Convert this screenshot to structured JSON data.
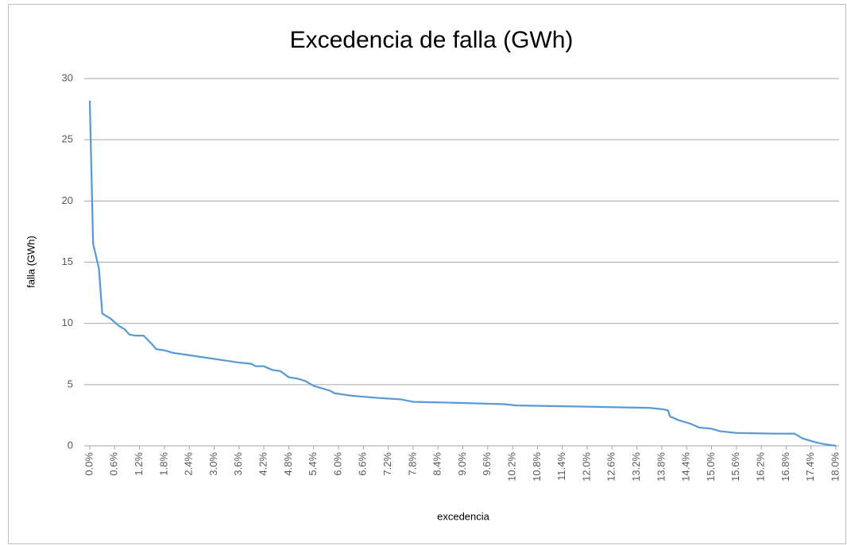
{
  "chart_data": {
    "type": "line",
    "title": "Excedencia de falla (GWh)",
    "x_label": "excedencia",
    "y_label": "falla (GWh)",
    "grid": true,
    "xlim": [
      0,
      18
    ],
    "ylim": [
      0,
      30
    ],
    "yticks": [
      0,
      5,
      10,
      15,
      20,
      25,
      30
    ],
    "xticks": [
      {
        "value": 0,
        "label": "0.0%"
      },
      {
        "value": 0.6,
        "label": "0.6%"
      },
      {
        "value": 1.2,
        "label": "1.2%"
      },
      {
        "value": 1.8,
        "label": "1.8%"
      },
      {
        "value": 2.4,
        "label": "2.4%"
      },
      {
        "value": 3.0,
        "label": "3.0%"
      },
      {
        "value": 3.6,
        "label": "3.6%"
      },
      {
        "value": 4.2,
        "label": "4.2%"
      },
      {
        "value": 4.8,
        "label": "4.8%"
      },
      {
        "value": 5.4,
        "label": "5.4%"
      },
      {
        "value": 6.0,
        "label": "6.0%"
      },
      {
        "value": 6.6,
        "label": "6.6%"
      },
      {
        "value": 7.2,
        "label": "7.2%"
      },
      {
        "value": 7.8,
        "label": "7.8%"
      },
      {
        "value": 8.4,
        "label": "8.4%"
      },
      {
        "value": 9.0,
        "label": "9.0%"
      },
      {
        "value": 9.6,
        "label": "9.6%"
      },
      {
        "value": 10.2,
        "label": "10.2%"
      },
      {
        "value": 10.8,
        "label": "10.8%"
      },
      {
        "value": 11.4,
        "label": "11.4%"
      },
      {
        "value": 12.0,
        "label": "12.0%"
      },
      {
        "value": 12.6,
        "label": "12.6%"
      },
      {
        "value": 13.2,
        "label": "13.2%"
      },
      {
        "value": 13.8,
        "label": "13.8%"
      },
      {
        "value": 14.4,
        "label": "14.4%"
      },
      {
        "value": 15.0,
        "label": "15.0%"
      },
      {
        "value": 15.6,
        "label": "15.6%"
      },
      {
        "value": 16.2,
        "label": "16.2%"
      },
      {
        "value": 16.8,
        "label": "16.8%"
      },
      {
        "value": 17.4,
        "label": "17.4%"
      },
      {
        "value": 18.0,
        "label": "18.0%"
      }
    ],
    "series": [
      {
        "color": "#5b9bd5",
        "x": [
          0,
          0.08,
          0.22,
          0.3,
          0.5,
          0.7,
          0.85,
          0.95,
          1.1,
          1.3,
          1.5,
          1.6,
          1.8,
          2.0,
          2.4,
          3.0,
          3.6,
          3.9,
          4.0,
          4.2,
          4.4,
          4.6,
          4.8,
          5.0,
          5.2,
          5.4,
          5.6,
          5.8,
          5.9,
          6.3,
          7.0,
          7.5,
          7.8,
          9.0,
          10.0,
          10.3,
          12.0,
          13.5,
          13.8,
          13.95,
          14.0,
          14.2,
          14.5,
          14.7,
          15.0,
          15.2,
          15.6,
          16.5,
          17.0,
          17.2,
          17.5,
          17.7,
          18.0
        ],
        "values": [
          28.2,
          16.5,
          14.5,
          10.8,
          10.4,
          9.8,
          9.5,
          9.1,
          9.0,
          9.0,
          8.3,
          7.9,
          7.8,
          7.6,
          7.4,
          7.1,
          6.8,
          6.7,
          6.5,
          6.5,
          6.2,
          6.1,
          5.6,
          5.5,
          5.3,
          4.9,
          4.7,
          4.5,
          4.3,
          4.1,
          3.9,
          3.8,
          3.6,
          3.5,
          3.4,
          3.3,
          3.2,
          3.1,
          3.0,
          2.9,
          2.4,
          2.1,
          1.8,
          1.5,
          1.4,
          1.2,
          1.05,
          1.0,
          1.0,
          0.6,
          0.3,
          0.15,
          0
        ]
      }
    ]
  }
}
